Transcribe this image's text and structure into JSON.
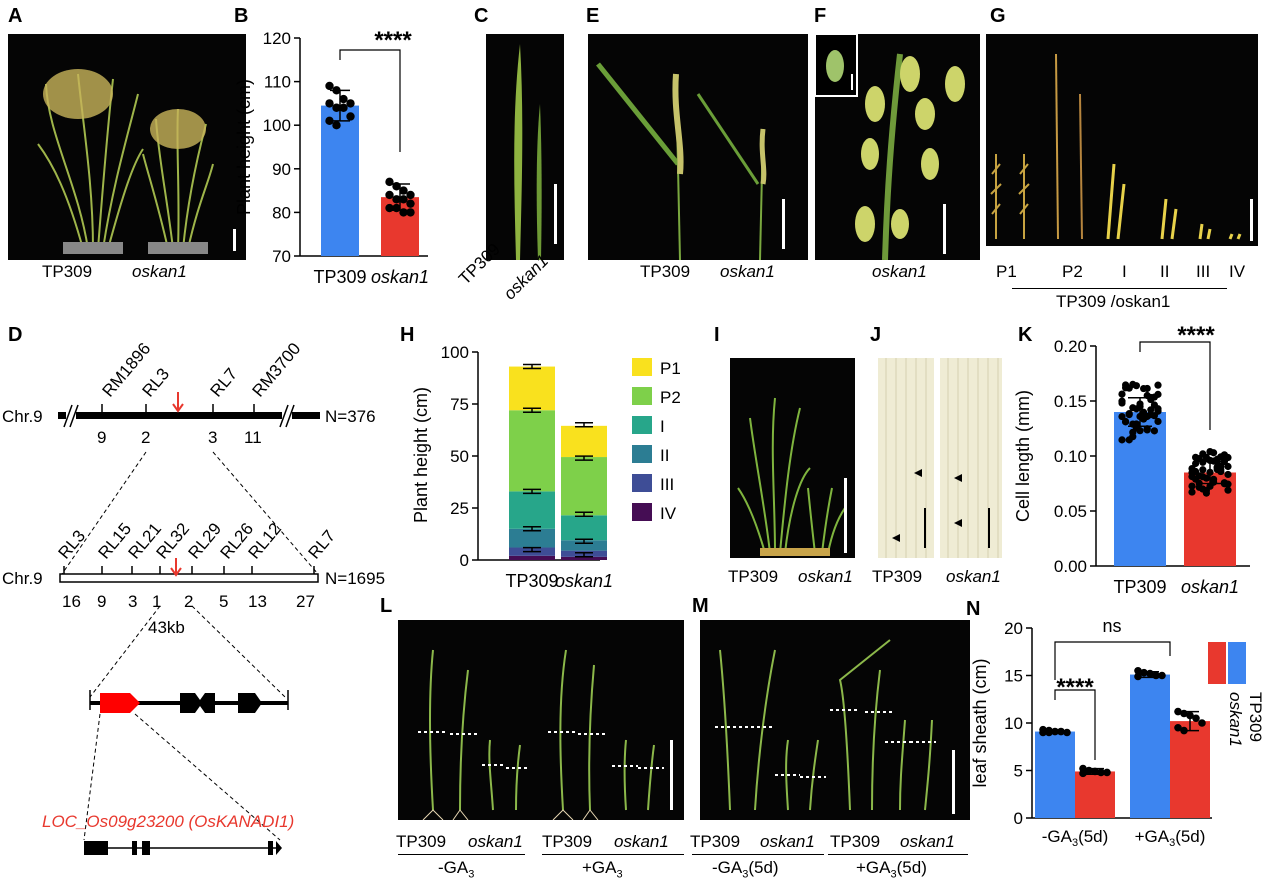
{
  "panels": {
    "A": {
      "letter": "A",
      "labels": [
        "TP309",
        "oskan1"
      ]
    },
    "B": {
      "letter": "B",
      "sig": "****"
    },
    "C": {
      "letter": "C",
      "labels": [
        "TP309",
        "oskan1"
      ]
    },
    "E": {
      "letter": "E",
      "labels": [
        "TP309",
        "oskan1"
      ]
    },
    "F": {
      "letter": "F",
      "labels": [
        "oskan1"
      ]
    },
    "G": {
      "letter": "G",
      "labels": [
        "P1",
        "P2",
        "I",
        "II",
        "III",
        "IV"
      ],
      "group_label": "TP309 /oskan1"
    },
    "D": {
      "letter": "D",
      "chr": "Chr.9",
      "top_markers": [
        "RM1896",
        "RL3",
        "RL7",
        "RM3700"
      ],
      "top_counts": [
        "9",
        "2",
        "3",
        "11"
      ],
      "top_n": "N=376",
      "fine_markers": [
        "RL3",
        "RL15",
        "RL21",
        "RL32",
        "RL29",
        "RL26",
        "RL12",
        "RL7"
      ],
      "fine_counts": [
        "16",
        "9",
        "3",
        "1",
        "2",
        "5",
        "13",
        "27"
      ],
      "fine_n": "N=1695",
      "interval": "43kb",
      "gene": "LOC_Os09g23200 (OsKANADI1)"
    },
    "H": {
      "letter": "H"
    },
    "I": {
      "letter": "I",
      "labels": [
        "TP309",
        "oskan1"
      ]
    },
    "J": {
      "letter": "J",
      "labels": [
        "TP309",
        "oskan1"
      ]
    },
    "K": {
      "letter": "K",
      "sig": "****"
    },
    "L": {
      "letter": "L",
      "labels": [
        "TP309",
        "oskan1",
        "TP309",
        "oskan1"
      ],
      "groups": [
        "-GA",
        "+GA"
      ],
      "sub": "3"
    },
    "M": {
      "letter": "M",
      "labels": [
        "TP309",
        "oskan1",
        "TP309",
        "oskan1"
      ],
      "groups": [
        "-GA",
        "(5d)",
        "+GA",
        "(5d)"
      ],
      "sub": "3"
    },
    "N": {
      "letter": "N",
      "sig": [
        "****",
        "ns"
      ],
      "legend": [
        "TP309",
        "oskan1"
      ]
    }
  },
  "colors": {
    "tp309": "#3d85f0",
    "oskan1": "#e8382e",
    "P1": "#f9e11e",
    "P2": "#7ed04a",
    "I": "#27a68a",
    "II": "#2c7d93",
    "III": "#3e4d96",
    "IV": "#450d54"
  },
  "chart_data": [
    {
      "id": "B",
      "type": "bar",
      "categories": [
        "TP309",
        "oskan1"
      ],
      "values": [
        104.5,
        83.5
      ],
      "errors": [
        3.5,
        3
      ],
      "points": [
        [
          109,
          108,
          106,
          105,
          105,
          104,
          104,
          102,
          101,
          100
        ],
        [
          87,
          86,
          85,
          84,
          84,
          83,
          83,
          82,
          81,
          81,
          80,
          80
        ]
      ],
      "ylabel": "Plant height (cm)",
      "ylim": [
        70,
        120
      ],
      "yticks": [
        70,
        80,
        90,
        100,
        110,
        120
      ]
    },
    {
      "id": "H",
      "type": "bar",
      "stacked": true,
      "categories": [
        "TP309",
        "oskan1"
      ],
      "ylabel": "Plant height (cm)",
      "ylim": [
        0,
        100
      ],
      "yticks": [
        0,
        25,
        50,
        75,
        100
      ],
      "series": [
        {
          "name": "IV",
          "values": [
            2,
            1.5
          ]
        },
        {
          "name": "III",
          "values": [
            4,
            3
          ]
        },
        {
          "name": "II",
          "values": [
            9,
            5
          ]
        },
        {
          "name": "I",
          "values": [
            18,
            12
          ]
        },
        {
          "name": "P2",
          "values": [
            39,
            28
          ]
        },
        {
          "name": "P1",
          "values": [
            21,
            15
          ]
        }
      ],
      "cum_errors": [
        [
          5,
          2.5
        ],
        [
          15,
          9
        ],
        [
          33,
          22
        ],
        [
          72,
          49
        ],
        [
          93,
          65
        ]
      ]
    },
    {
      "id": "K",
      "type": "bar",
      "categories": [
        "TP309",
        "oskan1"
      ],
      "values": [
        0.14,
        0.085
      ],
      "errors": [
        0.013,
        0.01
      ],
      "ylabel": "Cell length (mm)",
      "ylim": [
        0,
        0.2
      ],
      "yticks": [
        "0.00",
        "0.05",
        "0.10",
        "0.15",
        "0.20"
      ]
    },
    {
      "id": "N",
      "type": "bar",
      "categories": [
        "-GA3(5d)",
        "+GA3(5d)"
      ],
      "series": [
        {
          "name": "TP309",
          "values": [
            9.1,
            15.1
          ],
          "errors": [
            0.2,
            0.3
          ],
          "points": [
            [
              9.3,
              9.2,
              9.1,
              9.1,
              9.0,
              9.0,
              9.0
            ],
            [
              15.5,
              15.3,
              15.2,
              15.0,
              15.0,
              14.9
            ]
          ]
        },
        {
          "name": "oskan1",
          "values": [
            4.9,
            10.2
          ],
          "errors": [
            0.3,
            1
          ],
          "points": [
            [
              5.2,
              5.0,
              4.9,
              4.8,
              4.8,
              4.7
            ],
            [
              11.2,
              11.0,
              10.8,
              10.5,
              10.0,
              9.5,
              9.2
            ]
          ]
        }
      ],
      "ylabel": "leaf sheath  (cm)",
      "ylim": [
        0,
        20
      ],
      "yticks": [
        0,
        5,
        10,
        15,
        20
      ]
    }
  ]
}
